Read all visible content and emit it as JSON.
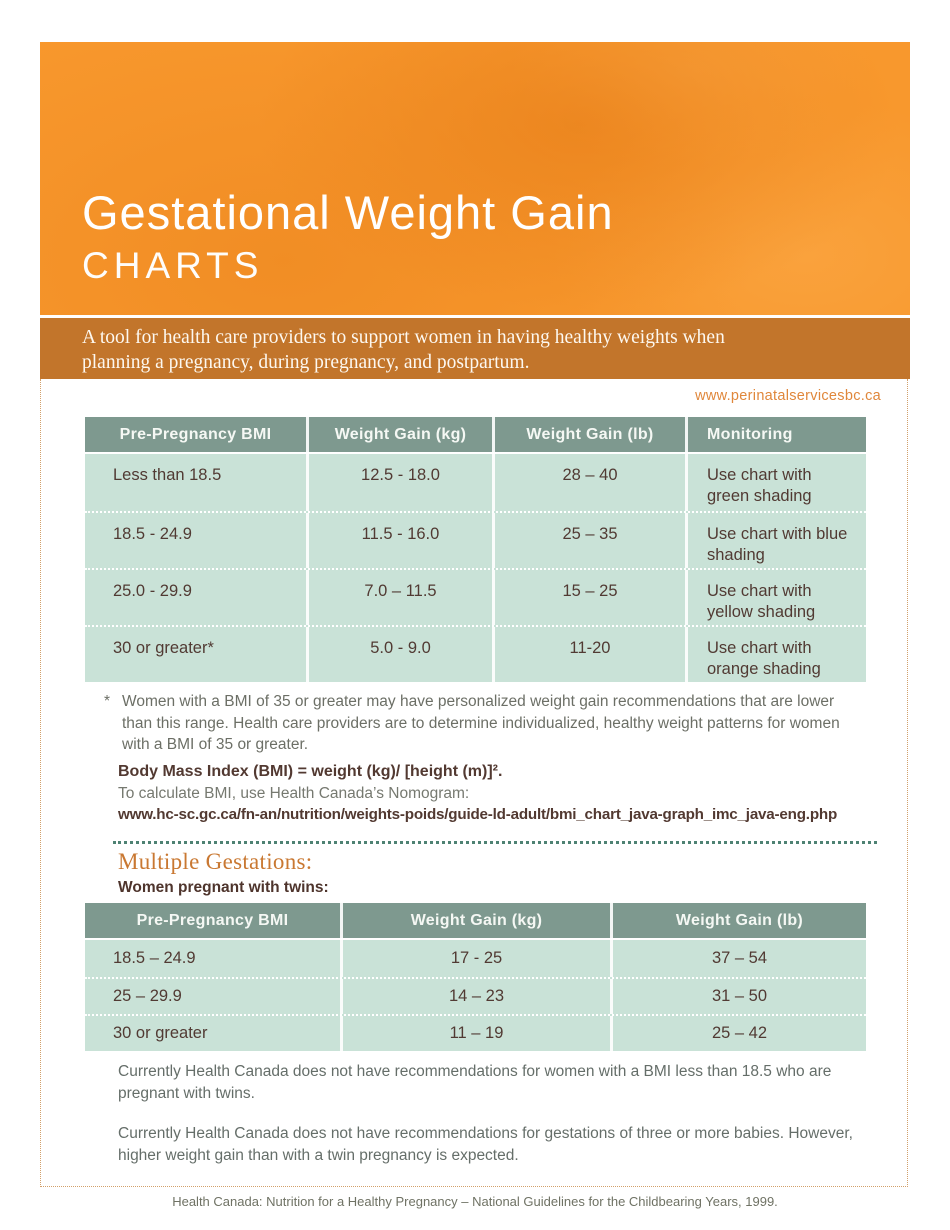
{
  "page": {
    "title": "Gestational Weight Gain",
    "subtitle": "CHARTS",
    "tagline": "A tool for health care providers to support women in having healthy weights when planning a pregnancy, during pregnancy, and postpartum.",
    "website": "www.perinatalservicesbc.ca",
    "footer": "Health Canada: Nutrition for a Healthy Pregnancy – National Guidelines for the Childbearing Years, 1999."
  },
  "colors": {
    "hero_orange": "#f8982d",
    "banner_brown": "#c2752b",
    "table_header_green": "#7e998f",
    "table_row_mint": "#c9e2d7",
    "accent_orange": "#e0873b",
    "dark_brown_text": "#513a33",
    "teal_dotted_line": "#4e8273",
    "dotted_border_tan": "#d2a06a"
  },
  "bmi_table": {
    "headers": [
      "Pre-Pregnancy BMI",
      "Weight Gain (kg)",
      "Weight Gain (lb)",
      "Monitoring"
    ],
    "rows": [
      [
        "Less than 18.5",
        "12.5 - 18.0",
        "28 – 40",
        "Use chart with green shading"
      ],
      [
        "18.5 - 24.9",
        "11.5 - 16.0",
        "25 – 35",
        "Use chart with blue shading"
      ],
      [
        "25.0 - 29.9",
        "7.0 – 11.5",
        "15 – 25",
        "Use chart with yellow shading"
      ],
      [
        "30 or greater*",
        "5.0 - 9.0",
        "11-20",
        "Use chart with orange shading"
      ]
    ]
  },
  "footnote": {
    "marker": "*",
    "text": "Women with a BMI of 35 or greater may have personalized weight gain recommendations that are lower than this range. Health care providers are to determine individualized, healthy weight patterns for women with a BMI of 35 or greater."
  },
  "formula": {
    "definition": "Body Mass Index (BMI) = weight (kg)/ [height (m)]².",
    "instruction": "To calculate BMI, use Health Canada’s Nomogram:",
    "url": "www.hc-sc.gc.ca/fn-an/nutrition/weights-poids/guide-ld-adult/bmi_chart_java-graph_imc_java-eng.php"
  },
  "multiple_gestations": {
    "heading": "Multiple Gestations:",
    "subheading": "Women pregnant with twins:",
    "table": {
      "headers": [
        "Pre-Pregnancy BMI",
        "Weight Gain (kg)",
        "Weight Gain (lb)"
      ],
      "rows": [
        [
          "18.5 – 24.9",
          "17 - 25",
          "37 – 54"
        ],
        [
          "25 – 29.9",
          "14 – 23",
          "31 – 50"
        ],
        [
          "30 or greater",
          "11 – 19",
          "25 – 42"
        ]
      ]
    },
    "notes": [
      "Currently Health Canada does not have recommendations for women with a BMI less than 18.5 who are pregnant with twins.",
      "Currently Health Canada does not have recommendations for gestations of three or more babies. However, higher weight gain than with a twin pregnancy is expected."
    ]
  }
}
